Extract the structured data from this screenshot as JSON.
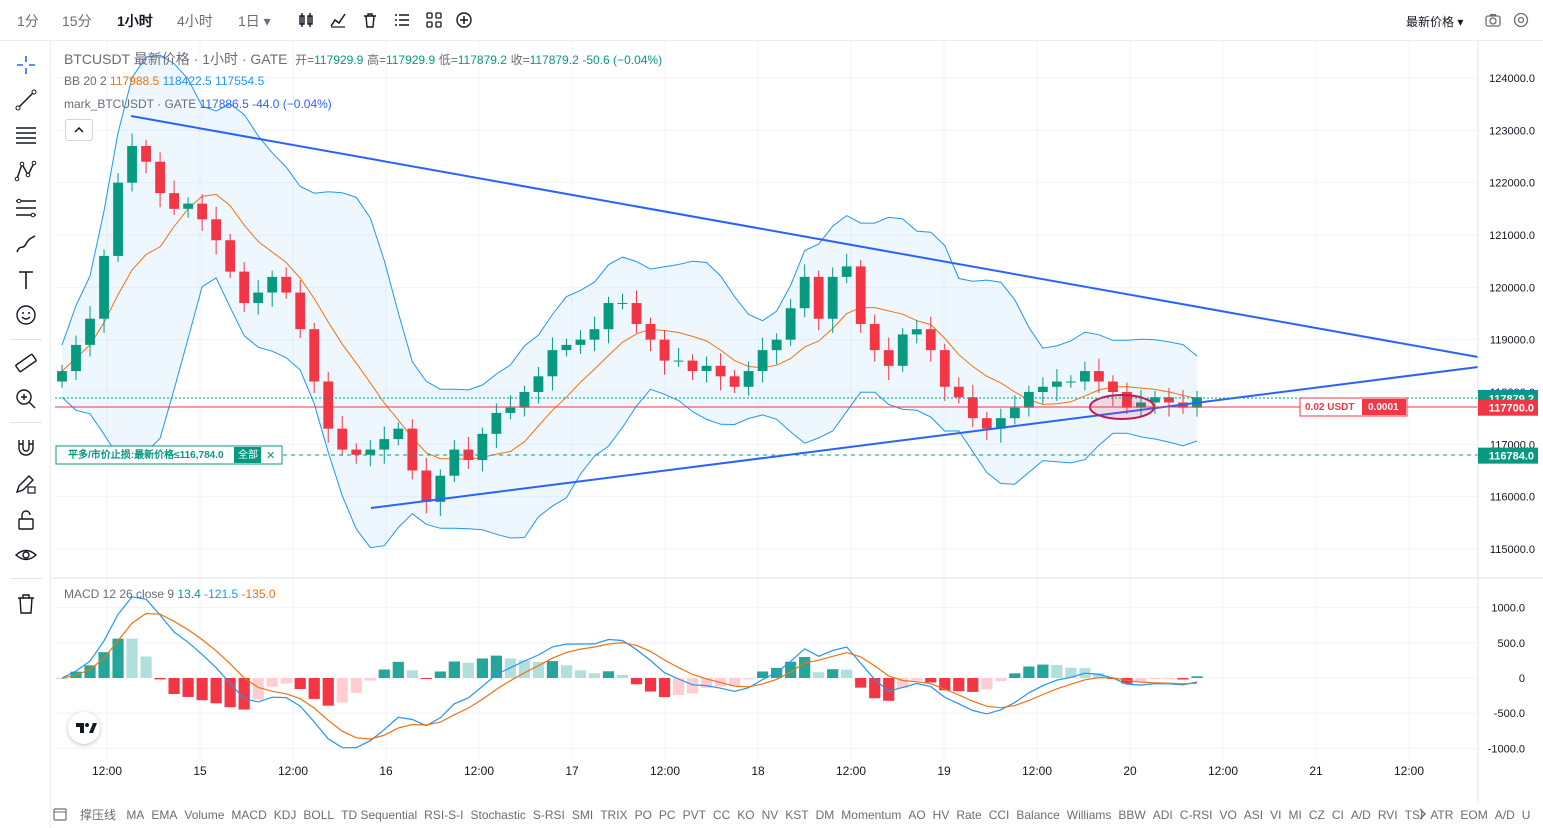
{
  "toolbar": {
    "timeframes": [
      "1分",
      "15分",
      "1小时",
      "4小时",
      "1日 ▾"
    ],
    "active_timeframe": "1小时",
    "price_type": "最新价格 ▾",
    "icons": [
      "candle-style-icon",
      "indicators-icon",
      "delete-icon",
      "list-icon",
      "layouts-icon",
      "add-icon"
    ]
  },
  "sidebar": {
    "icons": [
      "crosshair-icon",
      "trendline-icon",
      "horizontal-lines-icon",
      "pattern-icon",
      "fib-icon",
      "brush-icon",
      "text-icon",
      "emoji-icon",
      "ruler-icon",
      "zoom-icon",
      "magnet-icon",
      "lock-drawing-icon",
      "lock-icon",
      "eye-icon",
      "trash-icon"
    ]
  },
  "legend": {
    "title": "BTCUSDT 最新价格 · 1小时 · GATE",
    "open_label": "开=",
    "open": "117929.9",
    "high_label": "高=",
    "high": "117929.9",
    "low_label": "低=",
    "low": "117879.2",
    "close_label": "收=",
    "close": "117879.2",
    "change": "-50.6 (−0.04%)",
    "bb_label": "BB 20 2",
    "bb_mid": "117988.5",
    "bb_upper": "118422.5",
    "bb_lower": "117554.5",
    "mark_label": "mark_BTCUSDT · GATE",
    "mark_value": "117886.5",
    "mark_change": "-44.0 (−0.04%)",
    "macd_label": "MACD 12 26 close 9",
    "macd_hist": "13.4",
    "macd_line": "-121.5",
    "macd_signal": "-135.0"
  },
  "order_line": {
    "label": "平多/市价止损:最新价格≤116,784.0",
    "button": "全部",
    "close_symbol": "✕",
    "price": 116784.0
  },
  "position_label": {
    "size": "0.02 USDT",
    "qty": "0.0001"
  },
  "price_tags": [
    {
      "text": "117886.5",
      "price": 117886.5,
      "color": "#2962ff"
    },
    {
      "text": "117879.2",
      "price": 117879.2,
      "color": "#089981"
    },
    {
      "text": "117700.0",
      "price": 117700.0,
      "color": "#f23645"
    },
    {
      "text": "116784.0",
      "price": 116784.0,
      "color": "#089981"
    }
  ],
  "chart_data": {
    "type": "candlestick",
    "price_axis_ticks": [
      124000,
      123000,
      122000,
      121000,
      120000,
      119000,
      118000,
      117000,
      116000,
      115000
    ],
    "price_axis_labels": [
      "124000.0",
      "123000.0",
      "122000.0",
      "121000.0",
      "120000.0",
      "119000.0",
      "118000.0",
      "117000.0",
      "116000.0",
      "115000.0"
    ],
    "macd_axis_ticks": [
      1000,
      500,
      0,
      -500,
      -1000
    ],
    "macd_axis_labels": [
      "1000.0",
      "500.0",
      "0",
      "-500.0",
      "-1000.0"
    ],
    "time_axis_labels": [
      "12:00",
      "15",
      "12:00",
      "16",
      "12:00",
      "17",
      "12:00",
      "18",
      "12:00",
      "19",
      "12:00",
      "20",
      "12:00",
      "21",
      "12:00"
    ],
    "close_series_approx": [
      118400,
      118900,
      119400,
      120600,
      122000,
      122700,
      122400,
      121800,
      121500,
      121600,
      121300,
      120900,
      120300,
      119700,
      119900,
      120200,
      119900,
      119200,
      118200,
      117300,
      116900,
      116800,
      116900,
      117100,
      117300,
      116500,
      115900,
      116400,
      116900,
      116700,
      117200,
      117600,
      117700,
      118000,
      118300,
      118800,
      118900,
      119000,
      119200,
      119700,
      119700,
      119300,
      119000,
      118600,
      118600,
      118400,
      118500,
      118300,
      118100,
      118400,
      118800,
      119000,
      119600,
      120200,
      119400,
      120200,
      120400,
      119300,
      118800,
      118500,
      119100,
      119200,
      118800,
      118100,
      117900,
      117500,
      117300,
      117500,
      117700,
      118000,
      118100,
      118200,
      118200,
      118400,
      118200,
      118000,
      117700,
      117800,
      117900,
      117800,
      117700,
      117900
    ],
    "ylim": [
      114500,
      124500
    ],
    "macd_ylim": [
      -1000,
      1000
    ]
  },
  "bottombar": {
    "first": "撑压线",
    "indicators": [
      "MA",
      "EMA",
      "Volume",
      "MACD",
      "KDJ",
      "BOLL",
      "TD Sequential",
      "RSI-S-I",
      "Stochastic",
      "S-RSI",
      "SMI",
      "TRIX",
      "PO",
      "PC",
      "PVT",
      "CC",
      "KO",
      "NV",
      "KST",
      "DM",
      "Momentum",
      "AO",
      "HV",
      "Rate",
      "CCI",
      "Balance",
      "Williams",
      "BBW",
      "ADI",
      "C-RSI",
      "VO",
      "ASI",
      "VI",
      "MI",
      "CZ",
      "CI",
      "A/D",
      "RVI",
      "TSI",
      "ATR",
      "EOM",
      "A/D",
      "U"
    ]
  },
  "colors": {
    "up": "#089981",
    "down": "#f23645",
    "trendline": "#2962ff",
    "bb_mid": "#f0730e",
    "bb_band": "#2196f3"
  }
}
